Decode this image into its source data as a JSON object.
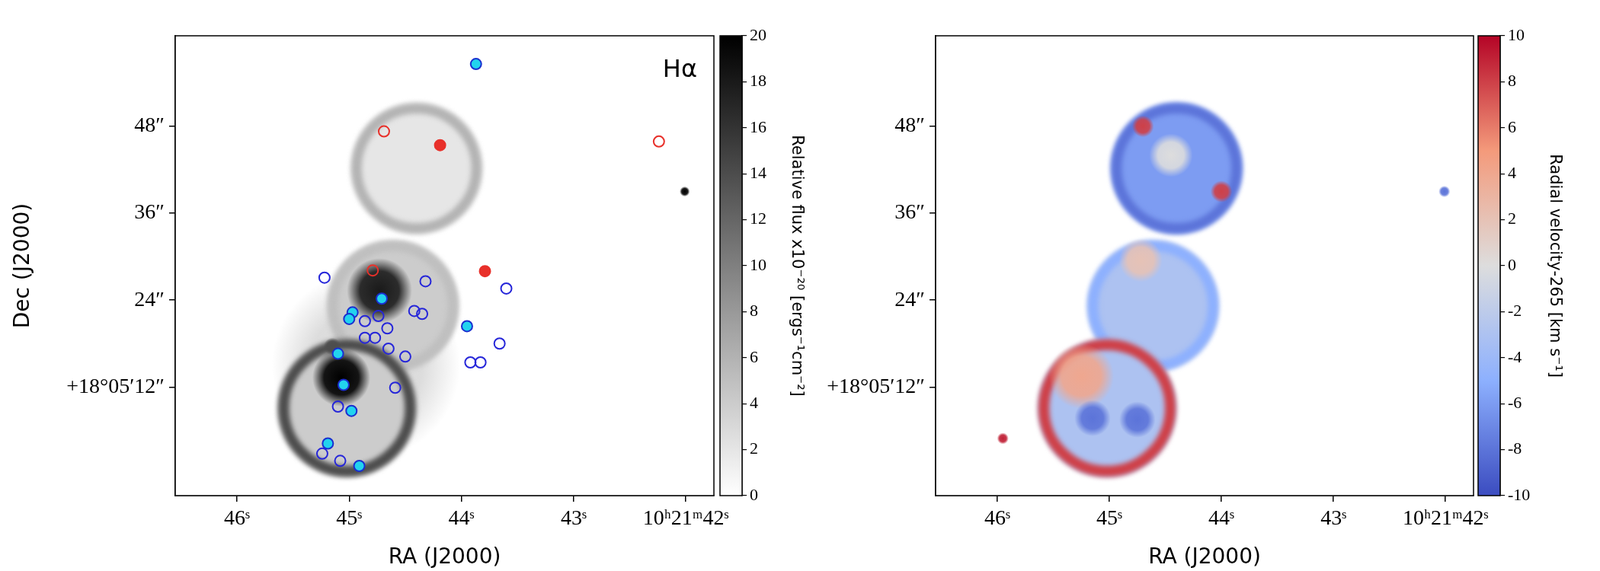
{
  "chart_data": [
    {
      "type": "image",
      "annotation": "Hα",
      "x_label": "RA (J2000)",
      "y_label": "Dec (J2000)",
      "xlim": [
        46.55,
        41.75
      ],
      "xticks": [
        {
          "value": 46,
          "label": "46ˢ"
        },
        {
          "value": 45,
          "label": "45ˢ"
        },
        {
          "value": 44,
          "label": "44ˢ"
        },
        {
          "value": 43,
          "label": "43ˢ"
        },
        {
          "value": 42,
          "label": "10ʰ21ᵐ42ˢ"
        }
      ],
      "ylim": [
        -3,
        60.5
      ],
      "yticks": [
        {
          "value": 12,
          "label": "+18°05′12″"
        },
        {
          "value": 24,
          "label": "24″"
        },
        {
          "value": 36,
          "label": "36″"
        },
        {
          "value": 48,
          "label": "48″"
        }
      ],
      "grid": false,
      "colorbar": {
        "label": "Relative flux x10⁻²⁰ [ergs⁻¹cm⁻²]",
        "color": "Greys",
        "range": [
          0,
          20
        ],
        "ticks": [
          0,
          2,
          4,
          6,
          8,
          10,
          12,
          14,
          16,
          18,
          20
        ]
      },
      "emission": [
        {
          "shape": "blob",
          "ra": 44.85,
          "dec": 15,
          "radius": 13,
          "value": 3
        },
        {
          "shape": "ring",
          "ra": 44.4,
          "dec": 42.2,
          "radius": 9,
          "value": 6,
          "fill_value": 2
        },
        {
          "shape": "ring",
          "ra": 44.61,
          "dec": 23.2,
          "radius": 9,
          "value": 5,
          "fill_value": 4
        },
        {
          "shape": "ring",
          "ra": 45.02,
          "dec": 9.1,
          "radius": 9.5,
          "value": 14,
          "fill_value": 4
        },
        {
          "shape": "blob",
          "ra": 45.07,
          "dec": 13.3,
          "radius": 4,
          "value": 22
        },
        {
          "shape": "blob",
          "ra": 44.73,
          "dec": 25.3,
          "radius": 4.5,
          "value": 18
        },
        {
          "shape": "blob",
          "ra": 45.15,
          "dec": 17.6,
          "radius": 1.2,
          "value": 14
        },
        {
          "shape": "blob",
          "ra": 42.01,
          "dec": 39.0,
          "radius": 0.7,
          "value": 20
        }
      ],
      "series": [
        {
          "color": "#e8302a",
          "marker": "circle-open",
          "values": [
            [
              44.69,
              47.3
            ],
            [
              44.79,
              28.1
            ],
            [
              42.24,
              45.9
            ]
          ]
        },
        {
          "color": "#e8302a",
          "marker": "circle",
          "values": [
            [
              44.19,
              45.4
            ],
            [
              43.79,
              28.0
            ]
          ]
        },
        {
          "color": "#2626d9",
          "marker": "circle-open",
          "values": [
            [
              45.22,
              27.1
            ],
            [
              44.32,
              26.6
            ],
            [
              43.6,
              25.6
            ],
            [
              44.74,
              21.8
            ],
            [
              44.86,
              21.1
            ],
            [
              44.66,
              20.1
            ],
            [
              44.42,
              22.5
            ],
            [
              44.35,
              22.1
            ],
            [
              44.86,
              18.8
            ],
            [
              44.77,
              18.8
            ],
            [
              44.65,
              17.3
            ],
            [
              44.5,
              16.2
            ],
            [
              43.66,
              18.0
            ],
            [
              43.92,
              15.4
            ],
            [
              43.83,
              15.4
            ],
            [
              44.59,
              11.9
            ],
            [
              45.1,
              9.3
            ],
            [
              45.24,
              2.8
            ],
            [
              45.08,
              1.8
            ]
          ]
        },
        {
          "color": "#22d3ee",
          "marker": "circle-edged",
          "values": [
            [
              43.87,
              56.6
            ],
            [
              44.71,
              24.2
            ],
            [
              44.97,
              22.3
            ],
            [
              45.0,
              21.4
            ],
            [
              45.1,
              16.6
            ],
            [
              45.05,
              12.3
            ],
            [
              44.98,
              8.7
            ],
            [
              43.95,
              20.4
            ],
            [
              45.19,
              4.2
            ],
            [
              44.91,
              1.1
            ]
          ]
        }
      ]
    },
    {
      "type": "image",
      "x_label": "RA (J2000)",
      "xlim": [
        46.55,
        41.75
      ],
      "xticks": [
        {
          "value": 46,
          "label": "46ˢ"
        },
        {
          "value": 45,
          "label": "45ˢ"
        },
        {
          "value": 44,
          "label": "44ˢ"
        },
        {
          "value": 43,
          "label": "43ˢ"
        },
        {
          "value": 42,
          "label": "10ʰ21ᵐ42ˢ"
        }
      ],
      "ylim": [
        -3,
        60.5
      ],
      "yticks": [
        {
          "value": 12,
          "label": "+18°05′12″"
        },
        {
          "value": 24,
          "label": "24″"
        },
        {
          "value": 36,
          "label": "36″"
        },
        {
          "value": 48,
          "label": "48″"
        }
      ],
      "grid": false,
      "colorbar": {
        "label": "Radial velocity-265 [km s⁻¹]",
        "color": "coolwarm",
        "range": [
          -10,
          10
        ],
        "ticks": [
          -10,
          -8,
          -6,
          -4,
          -2,
          0,
          2,
          4,
          6,
          8,
          10
        ]
      },
      "emission": [
        {
          "shape": "ring",
          "ra": 44.4,
          "dec": 42.2,
          "radius": 9,
          "value": -8,
          "fill_value": -6
        },
        {
          "shape": "ring",
          "ra": 44.61,
          "dec": 23.2,
          "radius": 9,
          "value": -5,
          "fill_value": -3
        },
        {
          "shape": "ring",
          "ra": 45.02,
          "dec": 9.1,
          "radius": 9.5,
          "value": 8,
          "fill_value": -3
        },
        {
          "shape": "blob",
          "ra": 44.72,
          "dec": 29.5,
          "radius": 3,
          "value": 2
        },
        {
          "shape": "blob",
          "ra": 45.25,
          "dec": 13.5,
          "radius": 4.5,
          "value": 4
        },
        {
          "shape": "blob",
          "ra": 45.15,
          "dec": 7.7,
          "radius": 2.5,
          "value": -8
        },
        {
          "shape": "blob",
          "ra": 44.75,
          "dec": 7.5,
          "radius": 2.5,
          "value": -8
        },
        {
          "shape": "blob",
          "ra": 44.45,
          "dec": 44,
          "radius": 3,
          "value": 0
        },
        {
          "shape": "blob",
          "ra": 44.0,
          "dec": 39,
          "radius": 1.5,
          "value": 8
        },
        {
          "shape": "blob",
          "ra": 44.7,
          "dec": 48,
          "radius": 1.5,
          "value": 8
        },
        {
          "shape": "blob",
          "ra": 42.01,
          "dec": 39.0,
          "radius": 0.8,
          "value": -8
        },
        {
          "shape": "blob",
          "ra": 45.95,
          "dec": 4.9,
          "radius": 0.8,
          "value": 9
        }
      ]
    }
  ]
}
